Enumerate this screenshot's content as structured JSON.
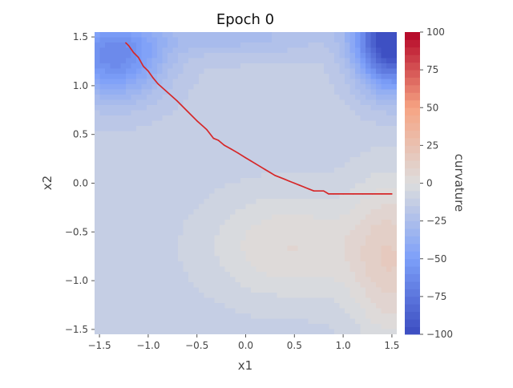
{
  "chart_data": {
    "type": "heatmap",
    "title": "Epoch 0",
    "xlabel": "x1",
    "ylabel": "x2",
    "xlim": [
      -1.55,
      1.55
    ],
    "ylim": [
      -1.55,
      1.55
    ],
    "x_ticks": [
      -1.5,
      -1.0,
      -0.5,
      0.0,
      0.5,
      1.0,
      1.5
    ],
    "x_tick_labels": [
      "−1.5",
      "−1.0",
      "−0.5",
      "0.0",
      "0.5",
      "1.0",
      "1.5"
    ],
    "y_ticks": [
      1.5,
      1.0,
      0.5,
      0.0,
      -0.5,
      -1.0,
      -1.5
    ],
    "y_tick_labels": [
      "1.5",
      "1.0",
      "0.5",
      "0.0",
      "−0.5",
      "−1.0",
      "−1.5"
    ],
    "grid": false,
    "colormap": "coolwarm",
    "colorbar": {
      "label": "curvature",
      "range": [
        -100,
        100
      ],
      "ticks": [
        100,
        75,
        50,
        25,
        0,
        -25,
        -50,
        -75,
        -100
      ],
      "tick_labels": [
        "100",
        "75",
        "50",
        "25",
        "0",
        "−25",
        "−50",
        "−75",
        "−100"
      ],
      "levels": [
        -100,
        -95,
        -90,
        -85,
        -80,
        -75,
        -70,
        -65,
        -60,
        -55,
        -50,
        -45,
        -40,
        -35,
        -30,
        -25,
        -20,
        -15,
        -10,
        -5,
        0,
        5,
        10,
        15,
        20,
        25,
        30,
        35,
        40,
        45,
        50,
        55,
        60,
        65,
        70,
        75,
        80,
        85,
        90,
        95,
        100
      ]
    },
    "series": [
      {
        "color": "#d62728",
        "x": [
          -1.23,
          -1.2,
          -1.15,
          -1.1,
          -1.05,
          -1.0,
          -0.95,
          -0.9,
          -0.8,
          -0.7,
          -0.6,
          -0.5,
          -0.4,
          -0.33,
          -0.28,
          -0.22,
          -0.15,
          -0.08,
          0.0,
          0.05,
          0.1,
          0.15,
          0.2,
          0.25,
          0.3,
          0.35,
          0.4,
          0.45,
          0.5,
          0.55,
          0.6,
          0.65,
          0.7,
          0.8,
          0.85,
          0.9,
          1.0,
          1.1,
          1.2,
          1.3,
          1.4,
          1.5
        ],
        "y": [
          1.44,
          1.41,
          1.34,
          1.29,
          1.2,
          1.15,
          1.08,
          1.02,
          0.93,
          0.84,
          0.74,
          0.64,
          0.55,
          0.46,
          0.44,
          0.39,
          0.35,
          0.31,
          0.26,
          0.23,
          0.2,
          0.17,
          0.14,
          0.11,
          0.08,
          0.06,
          0.04,
          0.02,
          0.0,
          -0.02,
          -0.04,
          -0.06,
          -0.08,
          -0.08,
          -0.11,
          -0.11,
          -0.11,
          -0.11,
          -0.11,
          -0.11,
          -0.11,
          -0.11
        ]
      }
    ]
  }
}
